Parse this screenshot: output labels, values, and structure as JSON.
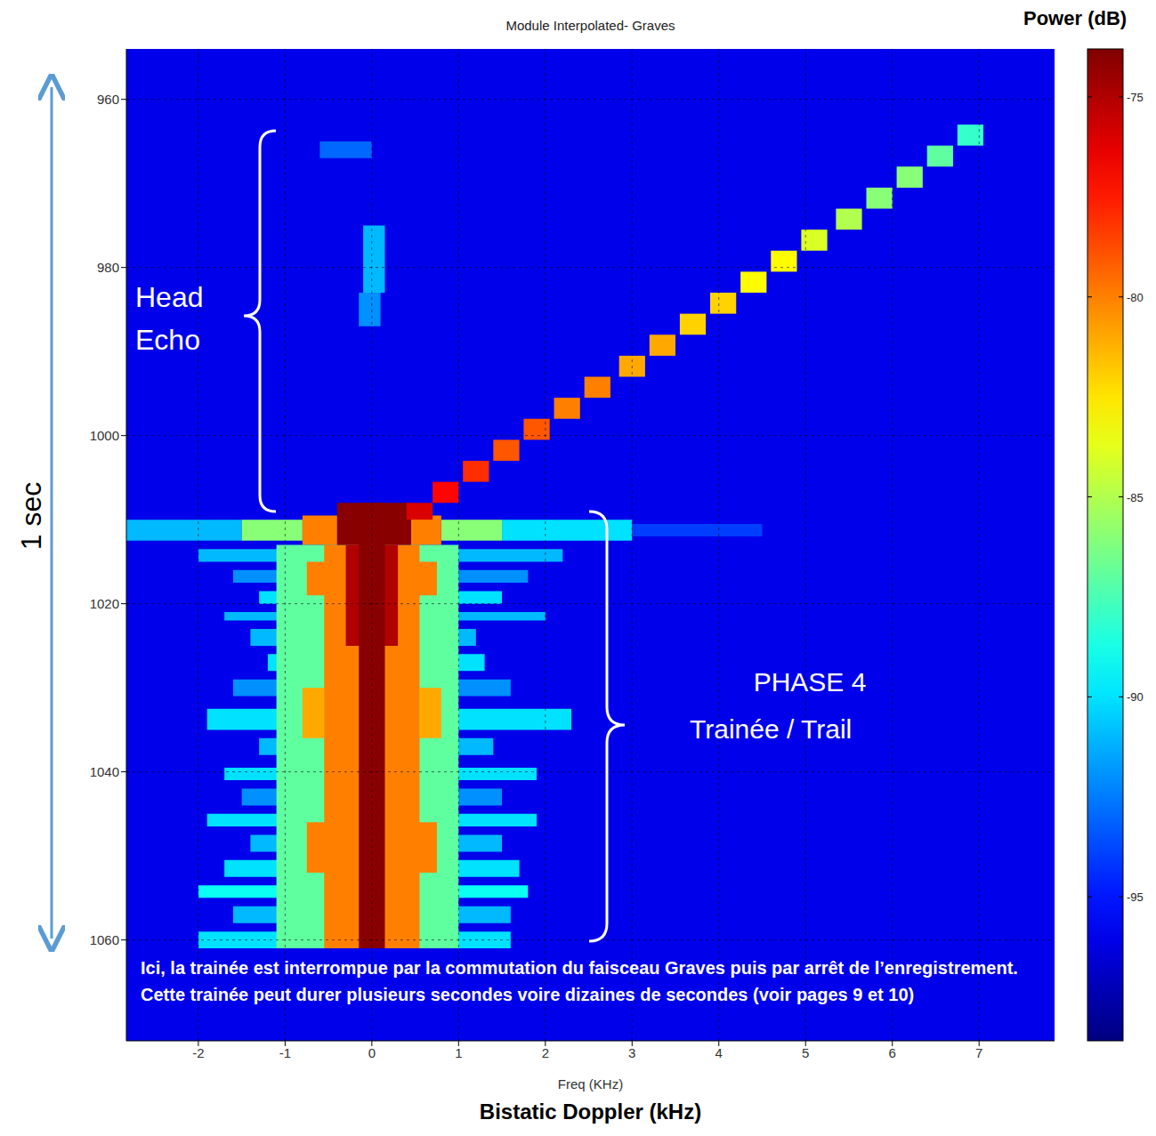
{
  "chart_data": {
    "type": "heatmap",
    "title": "Module Interpolated- Graves",
    "x_label": "Freq (KHz)",
    "x_caption": "Bistatic Doppler (kHz)",
    "y_caption": "1 sec",
    "xlim": [
      -2.83,
      7.87
    ],
    "xticks": [
      -2,
      -1,
      0,
      1,
      2,
      3,
      4,
      5,
      6,
      7
    ],
    "ylim": [
      954,
      1072
    ],
    "yticks": [
      960,
      980,
      1000,
      1020,
      1040,
      1060
    ],
    "grid": true,
    "colorbar": {
      "label": "Power (dB)",
      "range": [
        -98.6,
        -73.8
      ],
      "ticks": [
        -75,
        -80,
        -85,
        -90,
        -95
      ]
    },
    "background": -96,
    "annotations": {
      "head_echo": "Head Echo",
      "trail_phase": "PHASE 4",
      "trail": "Trainée / Trail",
      "note": "Ici, la trainée est interrompue par la commutation du faisceau Graves puis par arrêt de l’enregistrement. Cette trainée peut durer plusieurs secondes voire dizaines de secondes (voir pages 9 et 10)"
    },
    "cells": [
      [
        -0.6,
        0.0,
        965,
        967,
        -93
      ],
      [
        -0.1,
        0.15,
        975,
        983,
        -91
      ],
      [
        -0.15,
        0.1,
        983,
        987,
        -92
      ],
      [
        -2.83,
        -1.5,
        1010,
        1012.5,
        -91
      ],
      [
        -1.5,
        -0.8,
        1010,
        1012.5,
        -86
      ],
      [
        1.5,
        3.0,
        1010,
        1012.5,
        -90
      ],
      [
        3.0,
        4.5,
        1010.5,
        1012,
        -94
      ],
      [
        0.8,
        1.5,
        1010,
        1012.5,
        -86
      ],
      [
        -0.8,
        -0.4,
        1009.5,
        1013,
        -80
      ],
      [
        0.45,
        0.8,
        1009.5,
        1013,
        -80
      ],
      [
        -2.0,
        2.2,
        1013.5,
        1015,
        -91
      ],
      [
        -1.6,
        1.8,
        1016,
        1017.5,
        -92
      ],
      [
        -1.3,
        1.5,
        1018.5,
        1020,
        -90
      ],
      [
        -1.7,
        2.0,
        1021,
        1022,
        -91
      ],
      [
        -1.4,
        1.2,
        1023,
        1025,
        -91
      ],
      [
        -1.2,
        1.3,
        1026,
        1028,
        -90
      ],
      [
        -1.6,
        1.6,
        1029,
        1031,
        -92
      ],
      [
        -1.9,
        2.3,
        1032.5,
        1035,
        -90
      ],
      [
        -1.3,
        1.4,
        1036,
        1038,
        -91
      ],
      [
        -1.7,
        1.9,
        1039.5,
        1041,
        -90
      ],
      [
        -1.5,
        1.5,
        1042,
        1044,
        -92
      ],
      [
        -1.9,
        1.9,
        1045,
        1046.5,
        -90
      ],
      [
        -1.4,
        1.5,
        1047.5,
        1049.5,
        -91
      ],
      [
        -1.7,
        1.7,
        1050.5,
        1052.5,
        -90
      ],
      [
        -2.0,
        1.8,
        1053.5,
        1055,
        -89
      ],
      [
        -1.6,
        1.6,
        1056,
        1058,
        -91
      ],
      [
        -2.0,
        1.6,
        1059,
        1061,
        -90
      ],
      [
        -1.1,
        1.0,
        1013,
        1061,
        -87
      ],
      [
        -0.75,
        -0.5,
        1015,
        1019,
        -80
      ],
      [
        0.5,
        0.75,
        1015,
        1019,
        -80
      ],
      [
        -0.8,
        -0.55,
        1030,
        1036,
        -81
      ],
      [
        0.55,
        0.8,
        1030,
        1036,
        -81
      ],
      [
        -0.75,
        -0.5,
        1046,
        1052,
        -80
      ],
      [
        0.5,
        0.75,
        1046,
        1052,
        -80
      ],
      [
        -0.55,
        0.55,
        1013,
        1061,
        -80
      ],
      [
        -0.4,
        0.45,
        1008,
        1013,
        -74
      ],
      [
        -0.3,
        0.3,
        1013,
        1025,
        -75
      ],
      [
        -0.15,
        0.15,
        1008,
        1061,
        -74
      ],
      [
        6.75,
        7.05,
        963,
        965.5,
        -88
      ],
      [
        6.4,
        6.7,
        965.5,
        968,
        -87
      ],
      [
        6.05,
        6.35,
        968,
        970.5,
        -86
      ],
      [
        5.7,
        6.0,
        970.5,
        973,
        -86
      ],
      [
        5.35,
        5.65,
        973,
        975.5,
        -85
      ],
      [
        4.95,
        5.25,
        975.5,
        978,
        -84
      ],
      [
        4.6,
        4.9,
        978,
        980.5,
        -83
      ],
      [
        4.25,
        4.55,
        980.5,
        983,
        -83
      ],
      [
        3.9,
        4.2,
        983,
        985.5,
        -82
      ],
      [
        3.55,
        3.85,
        985.5,
        988,
        -82
      ],
      [
        3.2,
        3.5,
        988,
        990.5,
        -81
      ],
      [
        2.85,
        3.15,
        990.5,
        993,
        -81
      ],
      [
        2.45,
        2.75,
        993,
        995.5,
        -80
      ],
      [
        2.1,
        2.4,
        995.5,
        998,
        -80
      ],
      [
        1.75,
        2.05,
        998,
        1000.5,
        -79
      ],
      [
        1.4,
        1.7,
        1000.5,
        1003,
        -79
      ],
      [
        1.05,
        1.35,
        1003,
        1005.5,
        -78
      ],
      [
        0.7,
        1.0,
        1005.5,
        1008,
        -77
      ],
      [
        0.4,
        0.7,
        1008,
        1010,
        -76
      ]
    ]
  }
}
